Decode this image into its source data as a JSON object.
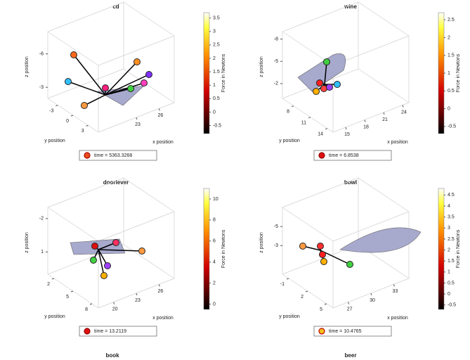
{
  "chart_data": [
    {
      "type": "scatter3d",
      "title": "cd",
      "xlabel": "x position",
      "ylabel": "y position",
      "zlabel": "z position",
      "xlim": [
        18,
        28
      ],
      "xticks": [
        23,
        26
      ],
      "ylim": [
        -5,
        5
      ],
      "yticks": [
        -3,
        0,
        3
      ],
      "zlim": [
        -2,
        -8
      ],
      "zticks": [
        -6,
        -3
      ],
      "colorbar": {
        "label": "Force in Newtons",
        "lim": [
          -0.8,
          3.7
        ],
        "ticks": [
          -0.5,
          0,
          0.5,
          1,
          1.5,
          2,
          2.5,
          3,
          3.5
        ]
      },
      "legend": {
        "label": "time = 5363.3268",
        "color": "#e8501a",
        "edge": "#b00000"
      }
    },
    {
      "type": "scatter3d",
      "title": "wine",
      "xlabel": "x position",
      "ylabel": "y position",
      "zlabel": "z position",
      "xlim": [
        13,
        25
      ],
      "xticks": [
        15,
        18,
        21,
        24
      ],
      "ylim": [
        6,
        15
      ],
      "yticks": [
        8,
        11,
        14
      ],
      "zlim": [
        0,
        -9
      ],
      "zticks": [
        -8,
        -5,
        -2
      ],
      "colorbar": {
        "label": "Force in Newtons",
        "lim": [
          -0.7,
          2.7
        ],
        "ticks": [
          -0.5,
          0,
          0.5,
          1,
          1.5,
          2,
          2.5
        ]
      },
      "legend": {
        "label": "time = 6.8538",
        "color": "#e01010",
        "edge": "#900000"
      }
    },
    {
      "type": "scatter3d",
      "title": "doorlever",
      "xlabel": "x position",
      "ylabel": "y position",
      "zlabel": "z position",
      "xlim": [
        18,
        28
      ],
      "xticks": [
        20,
        23,
        26
      ],
      "ylim": [
        1,
        9
      ],
      "yticks": [
        2,
        5,
        8
      ],
      "zlim": [
        3,
        -3
      ],
      "zticks": [
        -2,
        1
      ],
      "colorbar": {
        "label": "Force in Newtons",
        "lim": [
          -0.5,
          11
        ],
        "ticks": [
          0,
          2,
          4,
          6,
          8,
          10
        ]
      },
      "legend": {
        "label": "time = 13.2119",
        "color": "#e01010",
        "edge": "#900000"
      }
    },
    {
      "type": "scatter3d",
      "title": "bowl",
      "xlabel": "x position",
      "ylabel": "y position",
      "zlabel": "z position",
      "xlim": [
        25,
        35
      ],
      "xticks": [
        27,
        30,
        33
      ],
      "ylim": [
        -2,
        6
      ],
      "yticks": [
        -1,
        2,
        5
      ],
      "zlim": [
        0,
        -7
      ],
      "zticks": [
        -5,
        -3
      ],
      "colorbar": {
        "label": "Force in Newtons",
        "lim": [
          -0.7,
          4.8
        ],
        "ticks": [
          -0.5,
          0,
          0.5,
          1,
          1.5,
          2,
          2.5,
          3,
          3.5,
          4,
          4.5
        ]
      },
      "legend": {
        "label": "time = 10.4765",
        "color": "#f0c020",
        "edge": "#c00000"
      }
    }
  ],
  "cut_off_titles": [
    "book",
    "beer"
  ]
}
